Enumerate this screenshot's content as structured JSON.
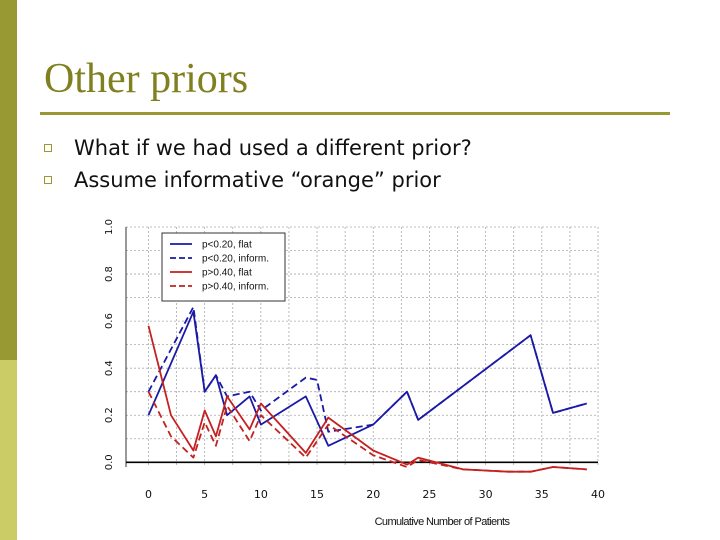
{
  "slide": {
    "title": "Other priors",
    "bullets": [
      "What if we had used a different prior?",
      "Assume informative “orange” prior"
    ]
  },
  "colors": {
    "accent": "#999933",
    "accent_light": "#cccc66",
    "title": "#808020",
    "blue": "#1a1aa6",
    "red": "#c42121"
  },
  "chart_data": {
    "type": "line",
    "xlabel": "Cumulative Number of Patients",
    "ylabel": "",
    "xlim": [
      -2,
      40
    ],
    "ylim": [
      -0.02,
      1.0
    ],
    "xticks": [
      0,
      5,
      10,
      15,
      20,
      25,
      30,
      35,
      40
    ],
    "yticks": [
      0.0,
      0.2,
      0.4,
      0.6,
      0.8,
      1.0
    ],
    "ytick_labels": [
      "0.0",
      "0.2",
      "0.4",
      "0.6",
      "0.8",
      "1.0"
    ],
    "grid": true,
    "legend_position": "top-left",
    "series": [
      {
        "name": "p<0.20, flat",
        "color": "#1a1aa6",
        "dash": "solid",
        "x": [
          0,
          4,
          5,
          6,
          7,
          9,
          10,
          14,
          16,
          20,
          23,
          24,
          34,
          36,
          39
        ],
        "y": [
          0.2,
          0.64,
          0.3,
          0.37,
          0.2,
          0.28,
          0.16,
          0.28,
          0.07,
          0.16,
          0.3,
          0.18,
          0.54,
          0.21,
          0.25
        ]
      },
      {
        "name": "p<0.20, inform.",
        "color": "#1a1aa6",
        "dash": "dashed",
        "x": [
          0,
          4,
          5,
          6,
          7,
          9,
          10,
          14,
          15,
          16,
          20,
          23,
          24,
          34,
          36,
          39
        ],
        "y": [
          0.3,
          0.66,
          0.3,
          0.37,
          0.28,
          0.3,
          0.22,
          0.36,
          0.35,
          0.13,
          0.16,
          0.3,
          0.18,
          0.54,
          0.21,
          0.25
        ]
      },
      {
        "name": "p>0.40, flat",
        "color": "#c42121",
        "dash": "solid",
        "x": [
          0,
          2,
          4,
          5,
          6,
          7,
          9,
          10,
          14,
          16,
          20,
          23,
          24,
          28,
          32,
          34,
          36,
          39
        ],
        "y": [
          0.58,
          0.2,
          0.05,
          0.22,
          0.11,
          0.28,
          0.14,
          0.25,
          0.04,
          0.19,
          0.05,
          -0.01,
          0.02,
          -0.03,
          -0.04,
          -0.04,
          -0.02,
          -0.03
        ]
      },
      {
        "name": "p>0.40, inform.",
        "color": "#c42121",
        "dash": "dashed",
        "x": [
          0,
          2,
          4,
          5,
          6,
          7,
          9,
          10,
          14,
          16,
          20,
          23,
          24,
          28,
          32,
          34,
          36,
          39
        ],
        "y": [
          0.3,
          0.11,
          0.02,
          0.17,
          0.07,
          0.24,
          0.09,
          0.2,
          0.02,
          0.16,
          0.03,
          -0.02,
          0.01,
          -0.03,
          -0.04,
          -0.04,
          -0.02,
          -0.03
        ]
      }
    ],
    "hline": 0.0
  }
}
